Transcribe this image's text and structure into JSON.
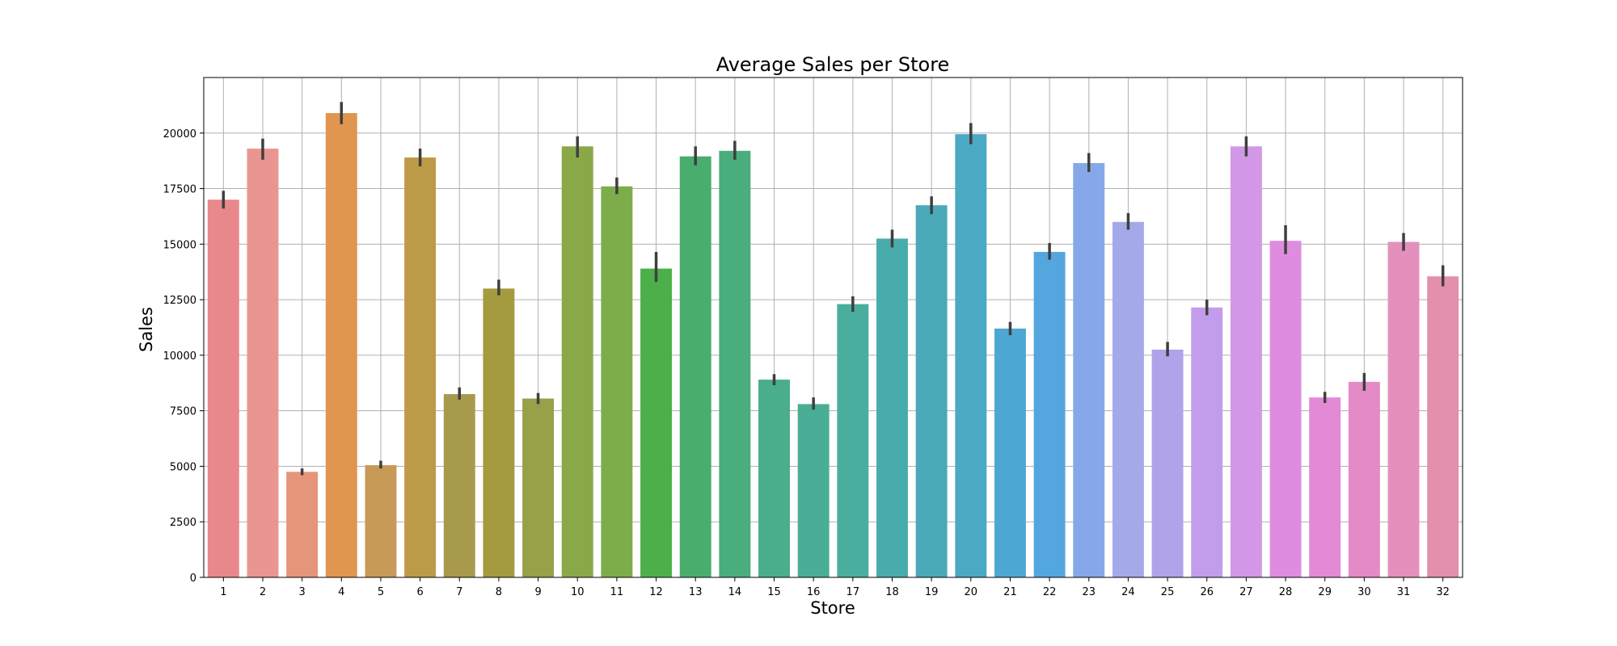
{
  "chart_data": {
    "type": "bar",
    "title": "Average Sales per Store",
    "xlabel": "Store",
    "ylabel": "Sales",
    "ylim": [
      0,
      22500
    ],
    "yticks": [
      0,
      2500,
      5000,
      7500,
      10000,
      12500,
      15000,
      17500,
      20000
    ],
    "ytick_labels": [
      "0",
      "2500",
      "5000",
      "7500",
      "10000",
      "12500",
      "15000",
      "17500",
      "20000"
    ],
    "grid": true,
    "categories": [
      "1",
      "2",
      "3",
      "4",
      "5",
      "6",
      "7",
      "8",
      "9",
      "10",
      "11",
      "12",
      "13",
      "14",
      "15",
      "16",
      "17",
      "18",
      "19",
      "20",
      "21",
      "22",
      "23",
      "24",
      "25",
      "26",
      "27",
      "28",
      "29",
      "30",
      "31",
      "32"
    ],
    "values": [
      17000,
      19300,
      4750,
      20900,
      5050,
      18900,
      8250,
      13000,
      8050,
      19400,
      17600,
      13900,
      18950,
      19200,
      8900,
      7800,
      12300,
      15250,
      16750,
      19950,
      11200,
      14650,
      18650,
      16000,
      10250,
      12150,
      19400,
      15150,
      8100,
      8800,
      15100,
      13550
    ],
    "error_low": [
      16600,
      18800,
      4600,
      20400,
      4900,
      18500,
      8000,
      12700,
      7800,
      18900,
      17250,
      13300,
      18550,
      18800,
      8650,
      7550,
      11950,
      14850,
      16350,
      19500,
      10900,
      14300,
      18250,
      15650,
      9950,
      11800,
      18950,
      14550,
      7850,
      8400,
      14700,
      13100
    ],
    "error_high": [
      17400,
      19750,
      4900,
      21400,
      5250,
      19300,
      8550,
      13400,
      8300,
      19850,
      18000,
      14650,
      19400,
      19650,
      9150,
      8100,
      12650,
      15650,
      17150,
      20450,
      11500,
      15050,
      19100,
      16400,
      10600,
      12500,
      19850,
      15850,
      8350,
      9200,
      15500,
      14050
    ],
    "colors": [
      "#e8888c",
      "#e99690",
      "#e5957a",
      "#e0964f",
      "#c79a58",
      "#bc9a48",
      "#a89a4c",
      "#a59a40",
      "#98a049",
      "#8aa848",
      "#7dad4a",
      "#4daf4a",
      "#49ad6d",
      "#4aad7d",
      "#4aad8b",
      "#4aad96",
      "#4aae9e",
      "#49acac",
      "#4aaab7",
      "#4ba9c4",
      "#4ca8d2",
      "#53a6de",
      "#86a8e8",
      "#a4a9ea",
      "#b1a2ea",
      "#c29deb",
      "#d297e6",
      "#df8ce0",
      "#e28ad6",
      "#e48ac6",
      "#e391bc",
      "#e290ad"
    ]
  }
}
